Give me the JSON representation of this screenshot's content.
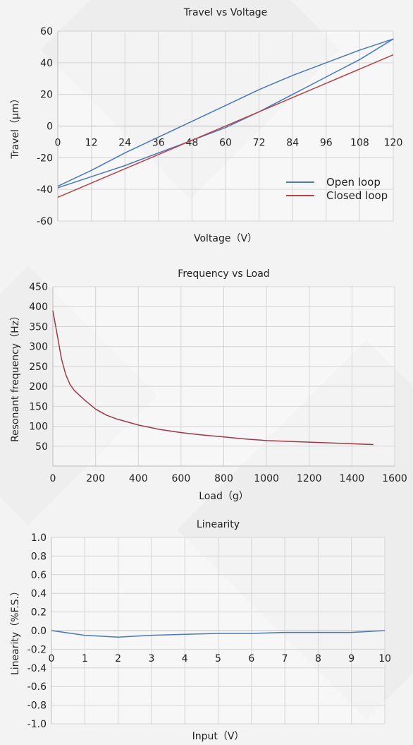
{
  "chart_data": [
    {
      "type": "line",
      "title": "Travel vs Voltage",
      "xlabel": "Voltage（V）",
      "ylabel": "Travel（μm）",
      "xlim": [
        0,
        120
      ],
      "ylim": [
        -60,
        60
      ],
      "xticks": [
        0,
        12,
        24,
        36,
        48,
        60,
        72,
        84,
        96,
        108,
        120
      ],
      "yticks": [
        -60,
        -40,
        -20,
        0,
        20,
        40,
        60
      ],
      "xtick_labels": [
        "0",
        "12",
        "24",
        "36",
        "48",
        "60",
        "72",
        "84",
        "96",
        "108",
        "120"
      ],
      "ytick_labels": [
        "-60",
        "-40",
        "-20",
        "0",
        "20",
        "40",
        "60"
      ],
      "grid": true,
      "legend": "bottom-right",
      "series": [
        {
          "name": "Open loop",
          "color": "#4a78b8",
          "x": [
            0,
            12,
            24,
            36,
            48,
            60,
            72,
            84,
            96,
            108,
            120,
            108,
            96,
            84,
            72,
            60,
            48,
            36,
            24,
            12,
            0
          ],
          "y": [
            -38,
            -28,
            -17,
            -7,
            3,
            13,
            23,
            32,
            40,
            48,
            55,
            42,
            31,
            20,
            9,
            -1,
            -9,
            -17,
            -25,
            -32,
            -39
          ]
        },
        {
          "name": "Closed loop",
          "color": "#b5444a",
          "x": [
            0,
            120
          ],
          "y": [
            -45,
            45
          ]
        }
      ]
    },
    {
      "type": "line",
      "title": "Frequency vs Load",
      "xlabel": "Load（g）",
      "ylabel": "Resonant frequency（Hz）",
      "xlim": [
        0,
        1600
      ],
      "ylim": [
        0,
        450
      ],
      "xticks": [
        0,
        200,
        400,
        600,
        800,
        1000,
        1200,
        1400,
        1600
      ],
      "yticks": [
        50,
        100,
        150,
        200,
        250,
        300,
        350,
        400,
        450
      ],
      "xtick_labels": [
        "0",
        "200",
        "400",
        "600",
        "800",
        "1000",
        "1200",
        "1400",
        "1600"
      ],
      "ytick_labels": [
        "50",
        "100",
        "150",
        "200",
        "250",
        "300",
        "350",
        "400",
        "450"
      ],
      "grid": true,
      "series": [
        {
          "color": "#9e3a48",
          "x": [
            0,
            20,
            40,
            60,
            80,
            100,
            150,
            200,
            250,
            300,
            400,
            500,
            600,
            700,
            800,
            900,
            1000,
            1100,
            1200,
            1300,
            1400,
            1500
          ],
          "y": [
            390,
            330,
            270,
            230,
            205,
            190,
            165,
            143,
            128,
            118,
            103,
            92,
            84,
            78,
            73,
            68,
            64,
            62,
            60,
            58,
            56,
            54
          ]
        }
      ]
    },
    {
      "type": "line",
      "title": "Linearity",
      "xlabel": "Input（V）",
      "ylabel": "Linearity（%F.S.）",
      "xlim": [
        0,
        10
      ],
      "ylim": [
        -1.0,
        1.0
      ],
      "xticks": [
        0,
        1,
        2,
        3,
        4,
        5,
        6,
        7,
        8,
        9,
        10
      ],
      "yticks": [
        -1.0,
        -0.8,
        -0.6,
        -0.4,
        -0.2,
        0.0,
        0.2,
        0.4,
        0.6,
        0.8,
        1.0
      ],
      "xtick_labels": [
        "0",
        "1",
        "2",
        "3",
        "4",
        "5",
        "6",
        "7",
        "8",
        "9",
        "10"
      ],
      "ytick_labels": [
        "-1.0",
        "-0.8",
        "-0.6",
        "-0.4",
        "-0.2",
        "0.0",
        "0.2",
        "0.4",
        "0.6",
        "0.8",
        "1.0"
      ],
      "grid": true,
      "series": [
        {
          "color": "#4a78b8",
          "x": [
            0,
            1,
            2,
            3,
            4,
            5,
            6,
            7,
            8,
            9,
            10
          ],
          "y": [
            0.0,
            -0.05,
            -0.07,
            -0.05,
            -0.04,
            -0.03,
            -0.03,
            -0.02,
            -0.02,
            -0.02,
            0.0
          ]
        }
      ]
    }
  ]
}
